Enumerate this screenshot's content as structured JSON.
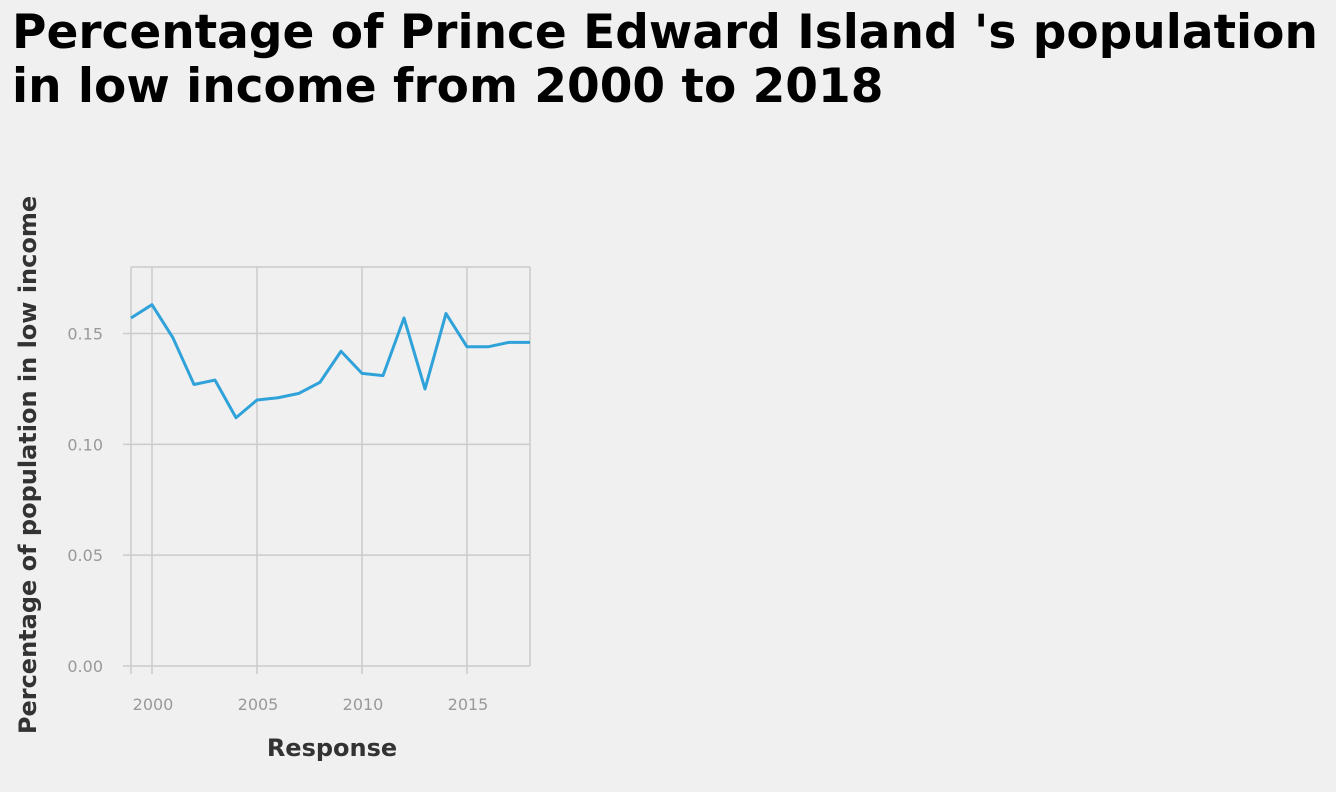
{
  "chart_data": {
    "type": "line",
    "title_lines": [
      "Percentage of Prince Edward Island 's population",
      "in low income from 2000 to 2018"
    ],
    "xlabel": "Response",
    "ylabel": "Percentage of population in low income",
    "xlim": [
      1999,
      2018
    ],
    "ylim": [
      0,
      0.18
    ],
    "x_ticks": [
      2000,
      2005,
      2010,
      2015
    ],
    "y_ticks": [
      {
        "value": 0.0,
        "label": "0.00"
      },
      {
        "value": 0.05,
        "label": "0.05"
      },
      {
        "value": 0.1,
        "label": "0.10"
      },
      {
        "value": 0.15,
        "label": "0.15"
      }
    ],
    "grid": true,
    "colors": {
      "line": "#30a2da",
      "grid": "#cbcbcb",
      "background": "#f0f0f0"
    },
    "series": [
      {
        "x": [
          1999,
          2000,
          2001,
          2002,
          2003,
          2004,
          2005,
          2006,
          2007,
          2008,
          2009,
          2010,
          2011,
          2012,
          2013,
          2014,
          2015,
          2016,
          2017,
          2018
        ],
        "values": [
          0.157,
          0.163,
          0.148,
          0.127,
          0.129,
          0.112,
          0.12,
          0.121,
          0.123,
          0.128,
          0.142,
          0.132,
          0.131,
          0.157,
          0.125,
          0.159,
          0.144,
          0.144,
          0.146,
          0.146
        ]
      }
    ]
  }
}
